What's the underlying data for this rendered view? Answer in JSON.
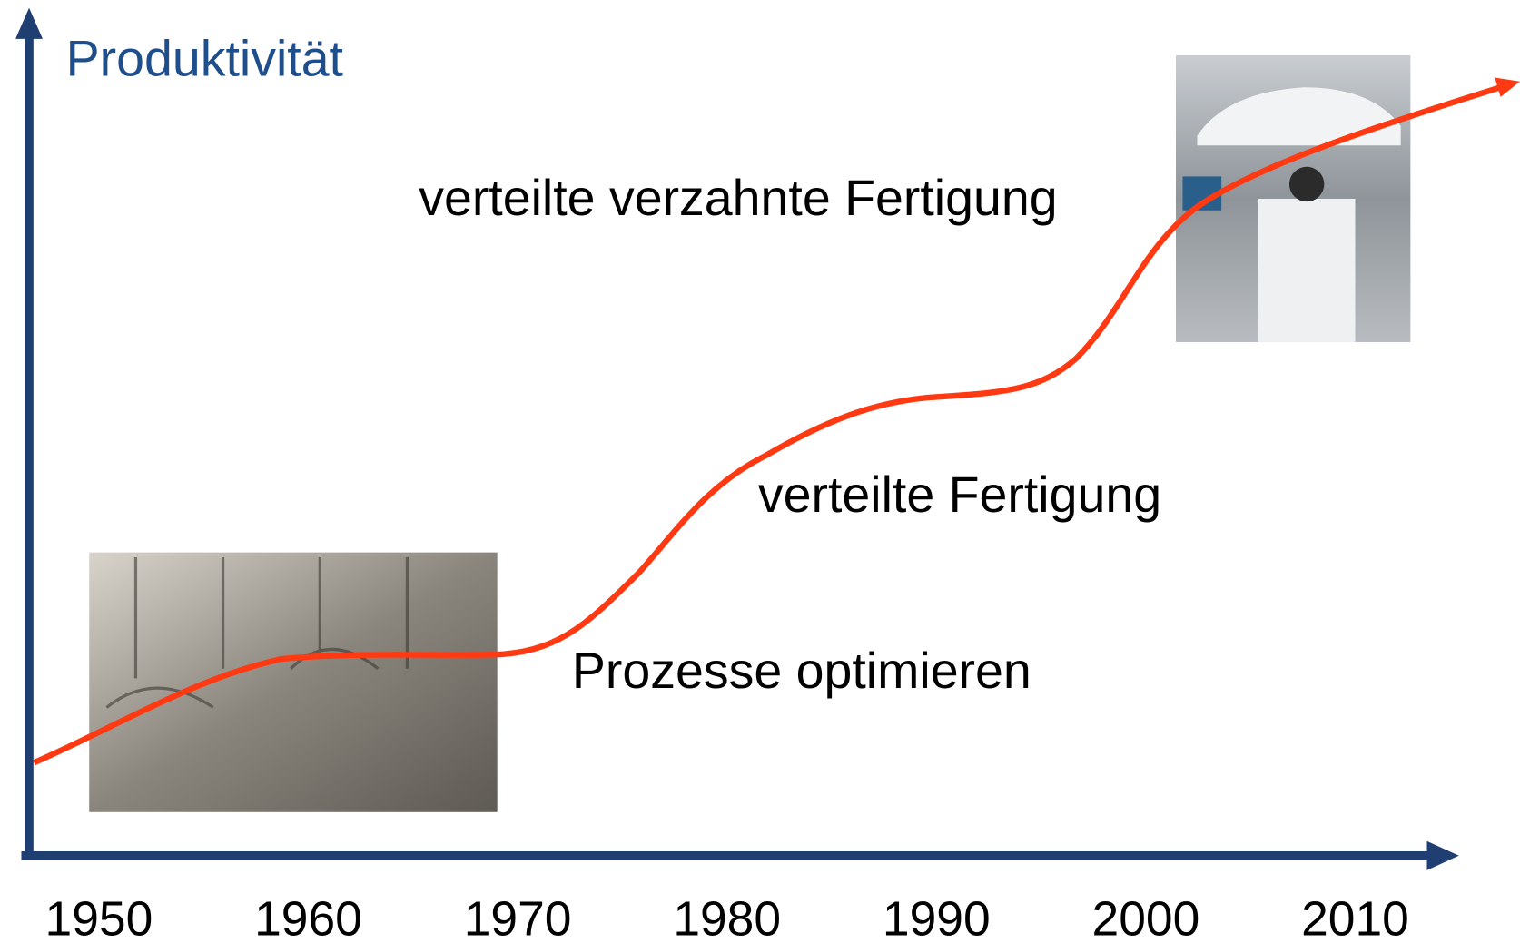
{
  "axis": {
    "y_label": "Produktivität",
    "x_labels": [
      1950,
      1960,
      1970,
      1980,
      1990,
      2000,
      2010
    ]
  },
  "annotations": [
    "verteilte verzahnte Fertigung",
    "verteilte Fertigung",
    "Prozesse optimieren"
  ]
}
